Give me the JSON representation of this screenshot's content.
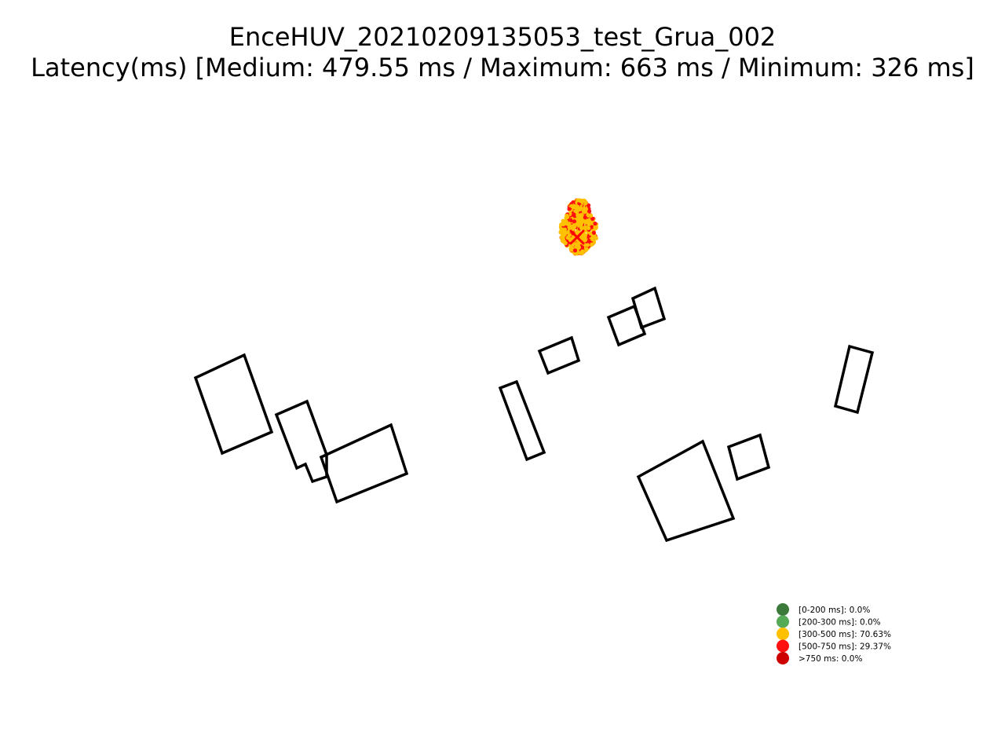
{
  "chart_data": {
    "type": "scatter",
    "title": "EnceHUV_20210209135053_test_Grua_002",
    "subtitle": "Latency(ms) [Medium: 479.55 ms / Maximum: 663 ms / Minimum: 326 ms]",
    "xlabel": "",
    "ylabel": "",
    "grid": false,
    "axes_visible": false,
    "legend_position": "lower-right",
    "latency_stats": {
      "medium_ms": 479.55,
      "maximum_ms": 663,
      "minimum_ms": 326
    },
    "legend": [
      {
        "label": "[0-200 ms]: 0.0%",
        "range_ms": [
          0,
          200
        ],
        "percent": 0.0,
        "color": "#3b7a3b"
      },
      {
        "label": "[200-300 ms]: 0.0%",
        "range_ms": [
          200,
          300
        ],
        "percent": 0.0,
        "color": "#55aa55"
      },
      {
        "label": "[300-500 ms]: 70.63%",
        "range_ms": [
          300,
          500
        ],
        "percent": 70.63,
        "color": "#ffc000"
      },
      {
        "label": "[500-750 ms]: 29.37%",
        "range_ms": [
          500,
          750
        ],
        "percent": 29.37,
        "color": "#ff1010"
      },
      {
        "label": ">750 ms: 0.0%",
        "range_ms": [
          750,
          null
        ],
        "percent": 0.0,
        "color": "#cc0000"
      }
    ],
    "start_marker": {
      "symbol": "x",
      "color": "#ff0000"
    }
  }
}
